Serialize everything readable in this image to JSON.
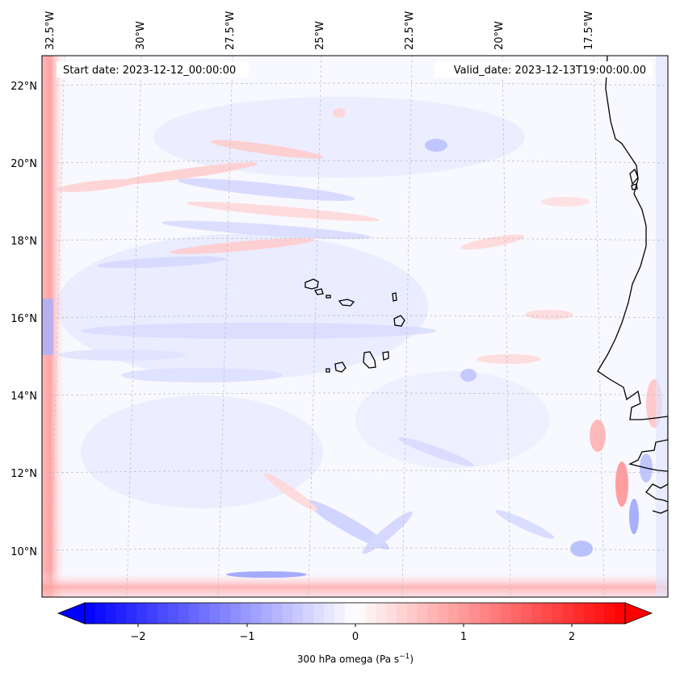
{
  "map": {
    "annotations": {
      "start": "Start date: 2023-12-12_00:00:00",
      "valid": "Valid_date: 2023-12-13T19:00:00.00"
    },
    "lon_labels": [
      "32.5°W",
      "30°W",
      "27.5°W",
      "25°W",
      "22.5°W",
      "20°W",
      "17.5°W"
    ],
    "lat_labels": [
      "22°N",
      "20°N",
      "18°N",
      "16°N",
      "14°N",
      "12°N",
      "10°N"
    ],
    "extent": {
      "lon": [
        -32.6,
        -15.8
      ],
      "lat": [
        8.9,
        22.8
      ]
    }
  },
  "colorbar": {
    "ticks": [
      "−2",
      "−1",
      "0",
      "1",
      "2"
    ],
    "label": "300 hPa omega (Pa s",
    "label_sup": "−1",
    "label_end": ")",
    "vmin": -2.6,
    "vmax": 2.6,
    "levels": 52,
    "colormap": "bwr",
    "colors": {
      "negative": "#0000ff",
      "zero": "#ffffff",
      "positive": "#ff0000"
    }
  },
  "colors": {
    "coast": "#000000",
    "grid": "#bbbbbb"
  }
}
